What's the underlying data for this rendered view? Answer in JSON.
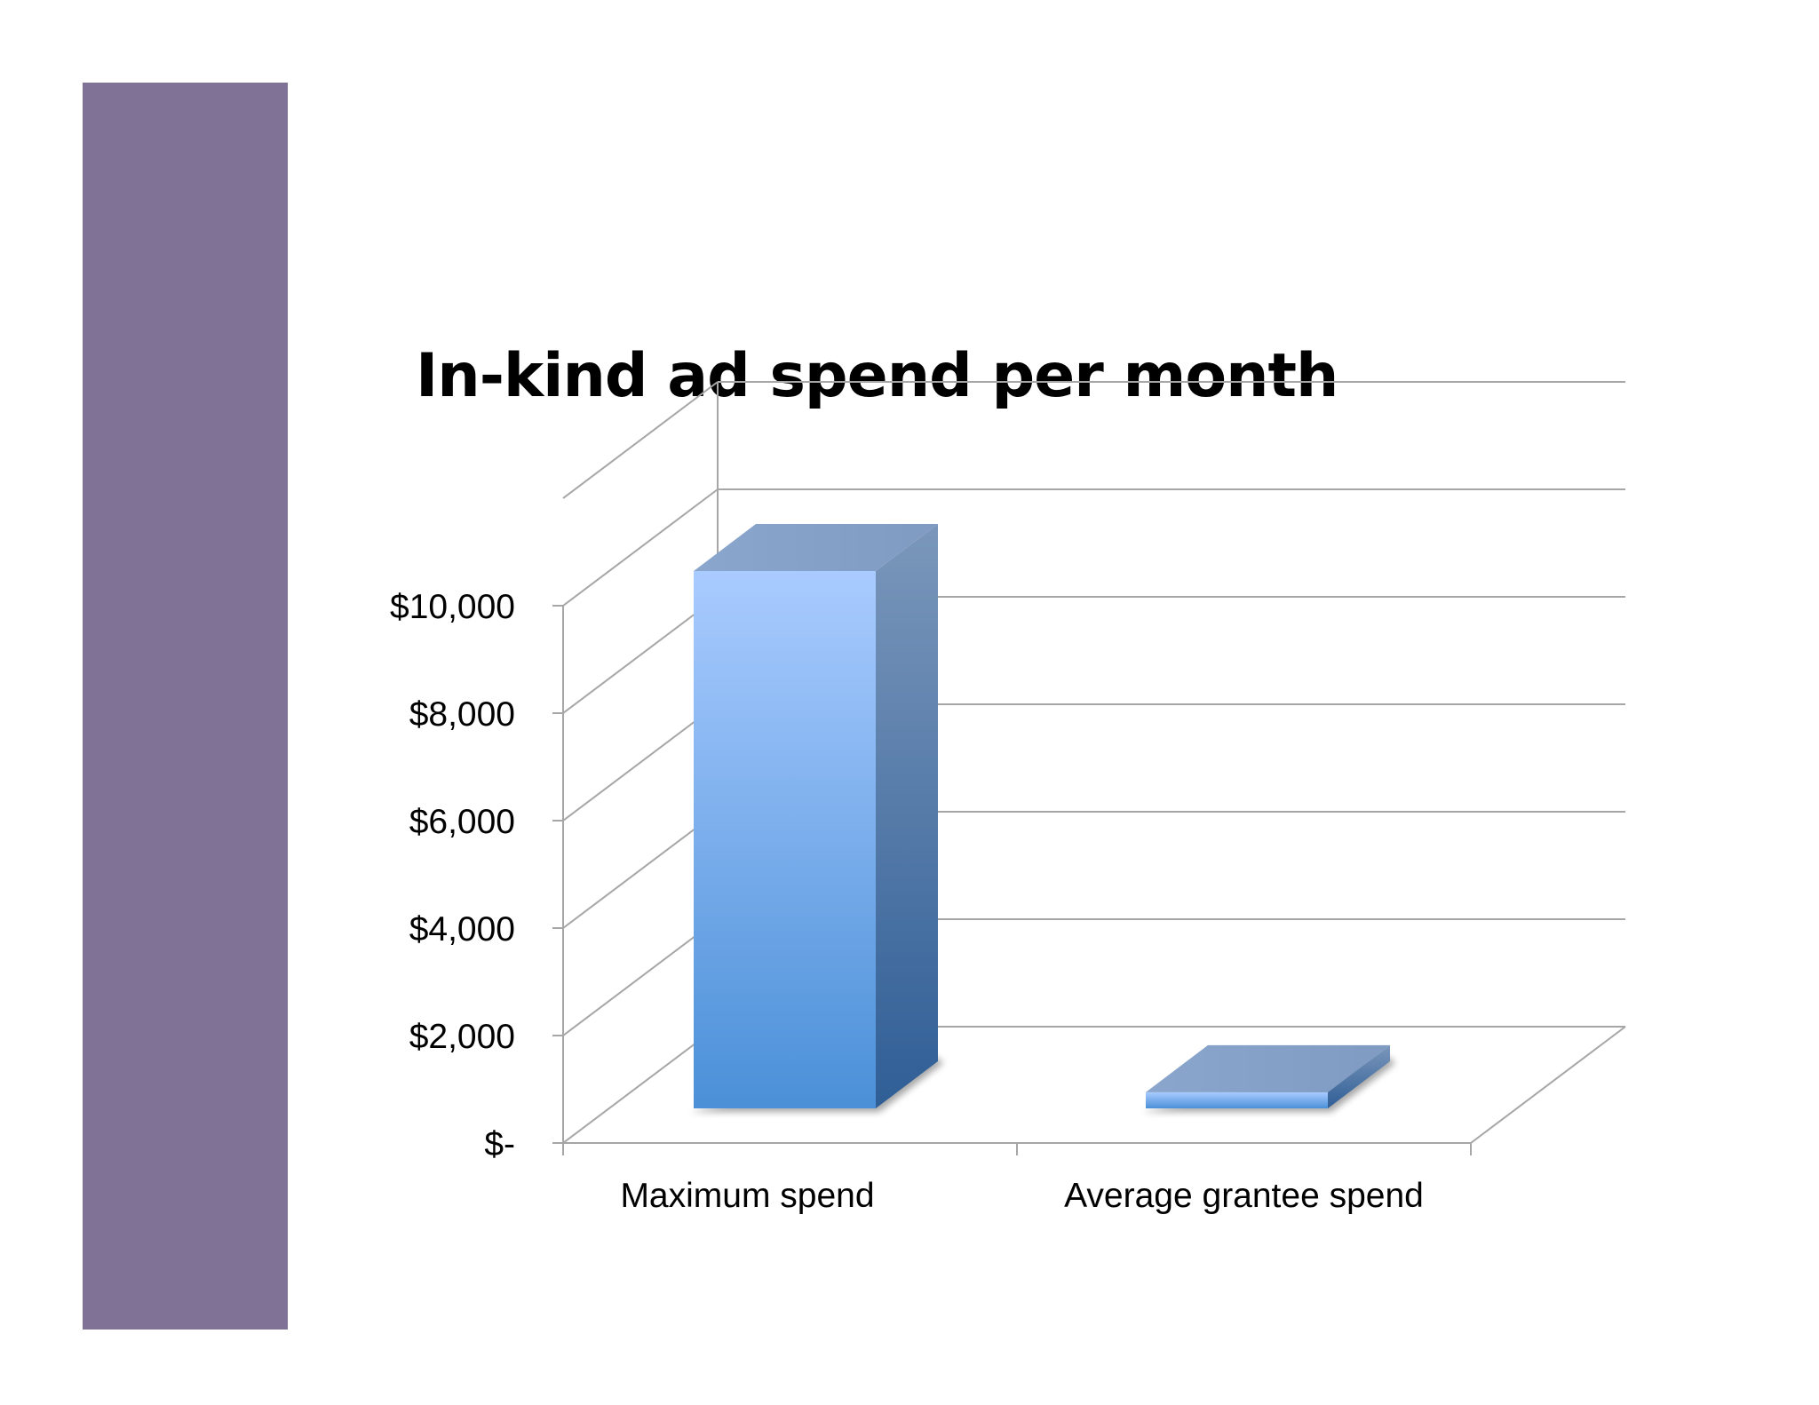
{
  "chart_data": {
    "type": "bar",
    "title": "In-kind ad spend per month",
    "categories": [
      "Maximum spend",
      "Average grantee spend"
    ],
    "values": [
      10000,
      300
    ],
    "ylim": [
      0,
      12000
    ],
    "y_ticks": [
      0,
      2000,
      4000,
      6000,
      8000,
      10000
    ],
    "y_tick_labels": [
      "$-",
      "$2,000",
      "$4,000",
      "$6,000",
      "$8,000",
      "$10,000"
    ],
    "xlabel": "",
    "ylabel": "",
    "grid": true,
    "style": "3d-column"
  },
  "colors": {
    "sidebar": "#807196",
    "bar_front_top": "#a9cbff",
    "bar_front_bottom": "#4b90d8",
    "bar_top": "#86a2c8",
    "bar_side_top": "#7b97bb",
    "bar_side_bottom": "#2f5e96",
    "gridline": "#a6a6a6"
  }
}
